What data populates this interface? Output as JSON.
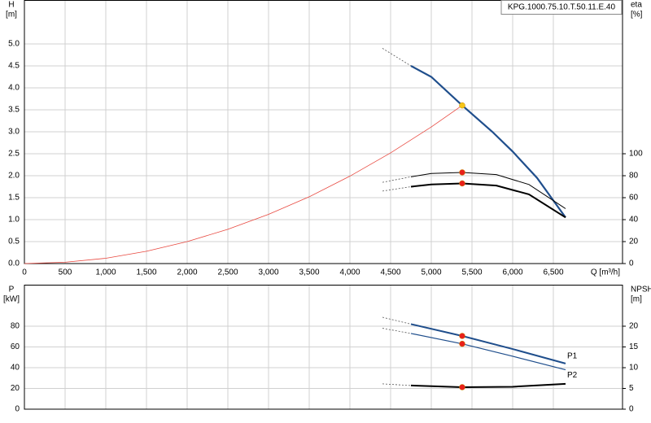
{
  "chart_data": [
    {
      "type": "line",
      "title": "KPG.1000.75.10.T.50.11.E.40",
      "y_label": "H",
      "y_unit": "[m]",
      "y2_label": "eta",
      "y2_unit": "[%]",
      "x_label": "Q [m³/h]",
      "xlim": [
        0,
        7350
      ],
      "xticks": [
        0,
        500,
        {
          "value": 1000,
          "label": "1,000"
        },
        {
          "value": 1500,
          "label": "1,500"
        },
        {
          "value": 2000,
          "label": "2,000"
        },
        {
          "value": 2500,
          "label": "2,500"
        },
        {
          "value": 3000,
          "label": "3,000"
        },
        {
          "value": 3500,
          "label": "3,500"
        },
        {
          "value": 4000,
          "label": "4,000"
        },
        {
          "value": 4500,
          "label": "4,500"
        },
        {
          "value": 5000,
          "label": "5,000"
        },
        {
          "value": 5500,
          "label": "5,500"
        },
        {
          "value": 6000,
          "label": "6,000"
        },
        {
          "value": 6500,
          "label": "6,500"
        }
      ],
      "ylim": [
        0,
        6
      ],
      "yticks": [
        {
          "value": 0,
          "label": "0.0"
        },
        0.5,
        {
          "value": 1,
          "label": "1.0"
        },
        1.5,
        {
          "value": 2,
          "label": "2.0"
        },
        2.5,
        {
          "value": 3,
          "label": "3.0"
        },
        3.5,
        {
          "value": 4,
          "label": "4.0"
        },
        4.5,
        {
          "value": 5,
          "label": "5.0"
        }
      ],
      "y2lim": [
        0,
        240
      ],
      "y2ticks": [
        0,
        20,
        40,
        60,
        80,
        100
      ],
      "grid": true,
      "series": [
        {
          "color": "#e8483f",
          "width": 0.8,
          "dash": false,
          "x": [
            0,
            500,
            1000,
            1500,
            2000,
            2500,
            3000,
            3500,
            4000,
            4500,
            5000,
            5380
          ],
          "values": [
            0,
            0.03,
            0.12,
            0.28,
            0.5,
            0.78,
            1.12,
            1.52,
            1.99,
            2.52,
            3.11,
            3.6
          ]
        },
        {
          "color": "#555555",
          "width": 0.8,
          "dash": true,
          "x": [
            4400,
            4750
          ],
          "values": [
            4.9,
            4.5
          ]
        },
        {
          "color": "#1f4e8c",
          "width": 2.2,
          "dash": false,
          "x": [
            4750,
            5000,
            5380,
            5750,
            6000,
            6300,
            6650
          ],
          "values": [
            4.5,
            4.25,
            3.6,
            3.0,
            2.55,
            1.95,
            1.05
          ]
        },
        {
          "color": "#555555",
          "width": 0.8,
          "dash": true,
          "axis": "y2",
          "x": [
            4400,
            4750
          ],
          "values": [
            74,
            79
          ]
        },
        {
          "color": "#000000",
          "width": 1.0,
          "dash": false,
          "axis": "y2",
          "x": [
            4750,
            5000,
            5380,
            5800,
            6200,
            6650
          ],
          "values": [
            79,
            82,
            83,
            81,
            72,
            50
          ]
        },
        {
          "color": "#555555",
          "width": 0.8,
          "dash": true,
          "axis": "y2",
          "x": [
            4400,
            4750
          ],
          "values": [
            66,
            70
          ]
        },
        {
          "color": "#000000",
          "width": 2.0,
          "dash": false,
          "axis": "y2",
          "x": [
            4750,
            5000,
            5380,
            5800,
            6200,
            6650
          ],
          "values": [
            70,
            72,
            73,
            71,
            63,
            42
          ]
        }
      ],
      "points": [
        {
          "color": "#f5c518",
          "x": 5380,
          "y": 3.6
        },
        {
          "color": "#e8201a",
          "axis": "y2",
          "x": 5380,
          "y": 83
        },
        {
          "color": "#e8201a",
          "axis": "y2",
          "x": 5380,
          "y": 73
        }
      ]
    },
    {
      "type": "line",
      "y_label": "P",
      "y_unit": "[kW]",
      "y2_label": "NPSH",
      "y2_unit": "[m]",
      "xlim": [
        0,
        7350
      ],
      "xticks": [
        0,
        500,
        1000,
        1500,
        2000,
        2500,
        3000,
        3500,
        4000,
        4500,
        5000,
        5500,
        6000,
        6500
      ],
      "ylim": [
        0,
        120
      ],
      "yticks": [
        0,
        20,
        40,
        60,
        80
      ],
      "y2lim": [
        0,
        30
      ],
      "y2ticks": [
        0,
        5,
        10,
        15,
        20
      ],
      "grid": true,
      "series": [
        {
          "color": "#555555",
          "width": 0.8,
          "dash": true,
          "x": [
            4400,
            4750
          ],
          "values": [
            88.6,
            82
          ]
        },
        {
          "name": "P1",
          "color": "#1f4e8c",
          "width": 2.0,
          "dash": false,
          "x": [
            4750,
            5380,
            6000,
            6650
          ],
          "values": [
            82,
            70.6,
            58,
            44
          ]
        },
        {
          "color": "#555555",
          "width": 0.8,
          "dash": true,
          "x": [
            4400,
            4750
          ],
          "values": [
            78,
            73
          ]
        },
        {
          "name": "P2",
          "color": "#1f4e8c",
          "width": 1.2,
          "dash": false,
          "x": [
            4750,
            5380,
            6000,
            6650
          ],
          "values": [
            73,
            63,
            51,
            38
          ]
        },
        {
          "color": "#555555",
          "width": 0.8,
          "dash": true,
          "axis": "y2",
          "x": [
            4400,
            4750
          ],
          "values": [
            6.1,
            5.7
          ]
        },
        {
          "color": "#000000",
          "width": 2.0,
          "dash": false,
          "axis": "y2",
          "x": [
            4750,
            5380,
            6000,
            6650
          ],
          "values": [
            5.7,
            5.3,
            5.4,
            6.1
          ]
        }
      ],
      "points": [
        {
          "color": "#e8201a",
          "x": 5380,
          "y": 70.6
        },
        {
          "color": "#e8201a",
          "x": 5380,
          "y": 63
        },
        {
          "color": "#e8201a",
          "axis": "y2",
          "x": 5380,
          "y": 5.3
        }
      ]
    }
  ]
}
